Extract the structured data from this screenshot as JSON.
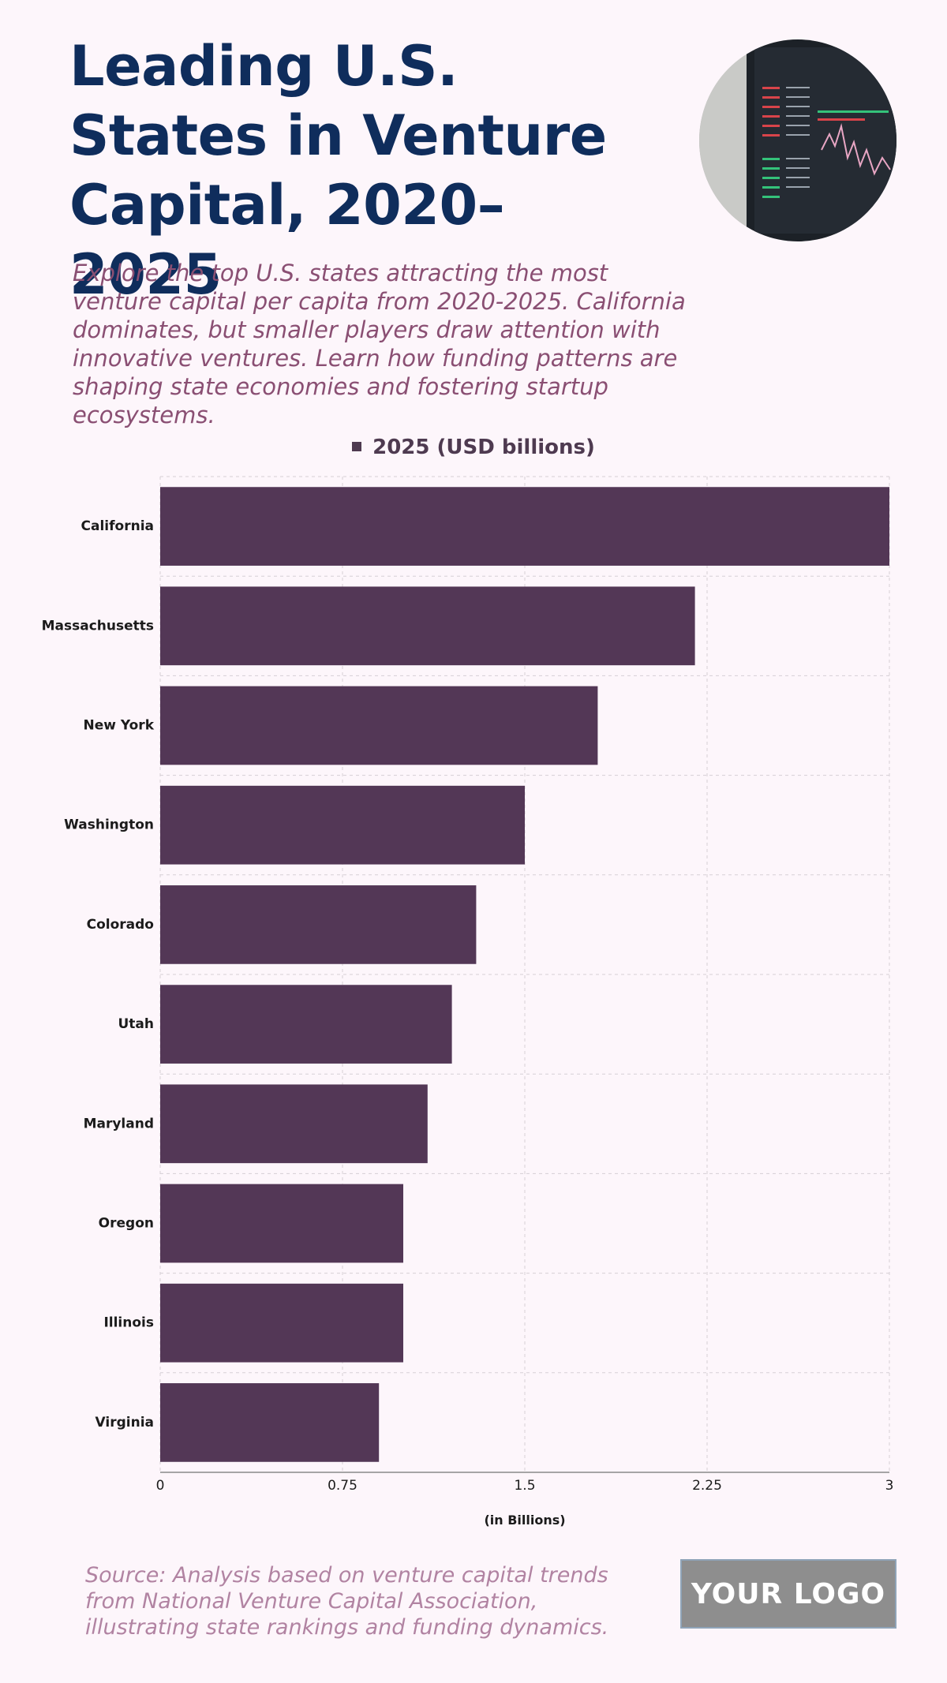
{
  "header": {
    "title": "Leading U.S. States in Venture Capital, 2020–2025",
    "subtitle": "Explore the top U.S. states attracting the most venture capital per capita from 2020-2025. California dominates, but smaller players draw attention with innovative ventures. Learn how funding patterns are shaping state economies and fostering startup ecosystems."
  },
  "footer": {
    "source": "Source: Analysis based on venture capital trends from National Venture Capital Association, illustrating state rankings and funding dynamics.",
    "logo": "YOUR LOGO"
  },
  "colors": {
    "bar": "#533756",
    "title": "#0f2d5c",
    "subtitle": "#8a4f73",
    "background": "#fdf6fb"
  },
  "chart_data": {
    "type": "bar",
    "orientation": "horizontal",
    "categories": [
      "California",
      "Massachusetts",
      "New York",
      "Washington",
      "Colorado",
      "Utah",
      "Maryland",
      "Oregon",
      "Illinois",
      "Virginia"
    ],
    "series": [
      {
        "name": "2025 (USD billions)",
        "values": [
          3.0,
          2.2,
          1.8,
          1.5,
          1.3,
          1.2,
          1.1,
          1.0,
          1.0,
          0.9
        ]
      }
    ],
    "xlabel": "(in Billions)",
    "xlim": [
      0,
      3
    ],
    "xticks": [
      0,
      0.75,
      1.5,
      2.25,
      3
    ],
    "xtick_labels": [
      "0",
      "0.75",
      "1.5",
      "2.25",
      "3"
    ],
    "legend": "top-center",
    "grid": true
  }
}
